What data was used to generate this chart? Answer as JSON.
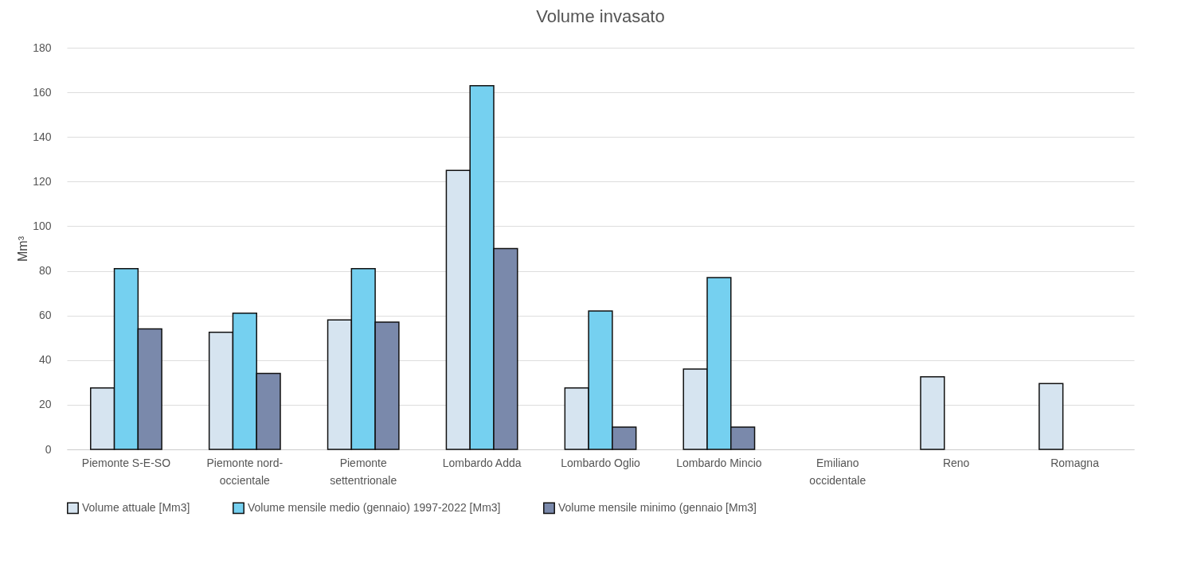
{
  "chart_data": {
    "type": "bar",
    "title": "Volume invasato",
    "ylabel": "Mm³",
    "categories": [
      "Piemonte S-E-SO",
      "Piemonte nord-occientale",
      "Piemonte settentrionale",
      "Lombardo Adda",
      "Lombardo Oglio",
      "Lombardo Mincio",
      "Emiliano occidentale",
      "Reno",
      "Romagna"
    ],
    "series": [
      {
        "name": "Volume attuale [Mm3]",
        "color": "#d6e4f0",
        "values": [
          27.5,
          52.5,
          58,
          125,
          27.5,
          36,
          null,
          32.5,
          29.5
        ]
      },
      {
        "name": "Volume mensile medio (gennaio) 1997-2022 [Mm3]",
        "color": "#75d0f0",
        "values": [
          81,
          61,
          81,
          163,
          62,
          77,
          null,
          null,
          null
        ]
      },
      {
        "name": "Volume mensile minimo (gennaio [Mm3]",
        "color": "#7a89ab",
        "values": [
          54,
          34,
          57,
          90,
          10,
          10,
          null,
          null,
          null
        ]
      }
    ],
    "ylim": [
      0,
      180
    ],
    "yticks": [
      0,
      20,
      40,
      60,
      80,
      100,
      120,
      140,
      160,
      180
    ],
    "grid": "y",
    "legend": "bottom"
  }
}
